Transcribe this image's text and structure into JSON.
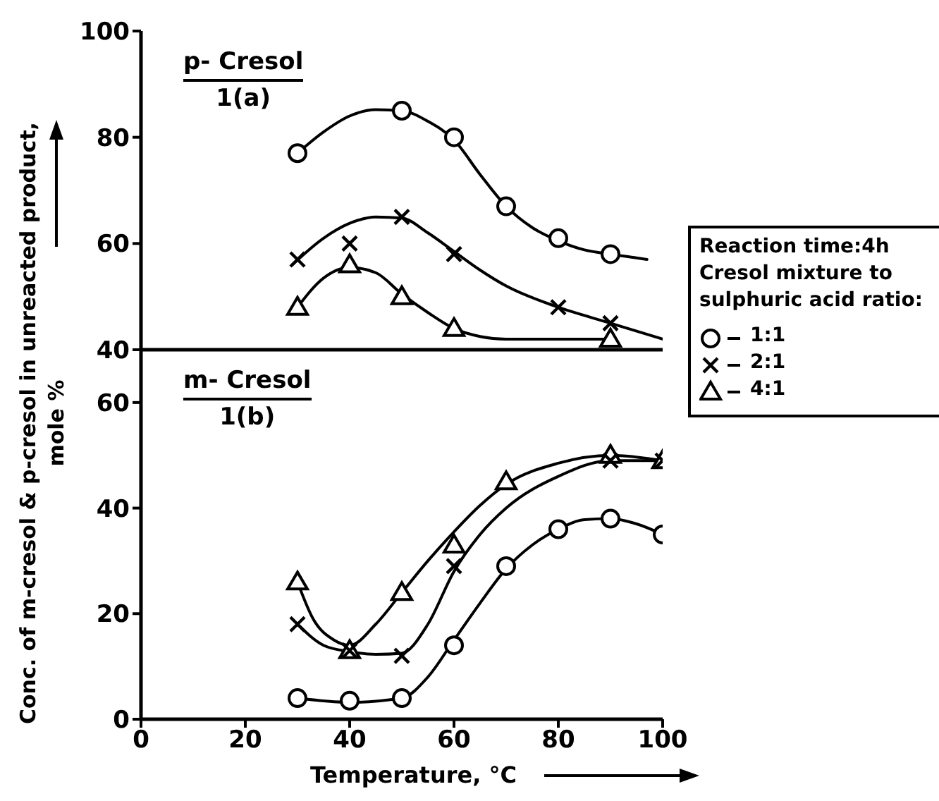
{
  "chart_data": [
    {
      "type": "scatter",
      "title": "p- Cresol",
      "subtitle": "1(a)",
      "xlim": [
        0,
        100
      ],
      "xticks": [
        0,
        20,
        40,
        60,
        80,
        100
      ],
      "ylim": [
        40,
        100
      ],
      "yticks": [
        40,
        60,
        80,
        100
      ],
      "tick_labels": "y",
      "series": [
        {
          "type": "scatter",
          "color": "#000000",
          "marker": "circle",
          "x": [
            30,
            50,
            60,
            70,
            80,
            90
          ],
          "values": [
            77,
            85,
            80,
            67,
            61,
            58
          ]
        },
        {
          "type": "scatter",
          "color": "#000000",
          "marker": "cross",
          "x": [
            30,
            40,
            50,
            60,
            80,
            90
          ],
          "values": [
            57,
            60,
            65,
            58,
            48,
            45
          ]
        },
        {
          "type": "scatter",
          "color": "#000000",
          "marker": "triangle",
          "x": [
            30,
            40,
            50,
            60,
            90
          ],
          "values": [
            48,
            56,
            50,
            44,
            42
          ]
        },
        {
          "type": "line",
          "color": "#000000",
          "marker": "none",
          "x": [
            30,
            35,
            40,
            45,
            50,
            55,
            60,
            65,
            70,
            75,
            80,
            85,
            90,
            95,
            97
          ],
          "values": [
            77,
            81,
            84,
            85.2,
            85,
            83,
            79.5,
            73,
            67,
            63,
            60.5,
            58.8,
            58,
            57.3,
            57
          ]
        },
        {
          "type": "line",
          "color": "#000000",
          "marker": "none",
          "x": [
            29,
            35,
            40,
            45,
            50,
            55,
            60,
            65,
            70,
            80,
            90,
            100
          ],
          "values": [
            56,
            61,
            63.8,
            65,
            64.8,
            62,
            58.5,
            55,
            52,
            48,
            45,
            42
          ]
        },
        {
          "type": "line",
          "color": "#000000",
          "marker": "none",
          "x": [
            30,
            35,
            40,
            45,
            50,
            55,
            60,
            65,
            70,
            80,
            90
          ],
          "values": [
            48,
            53.5,
            55.5,
            54.5,
            50.5,
            47,
            44,
            42.5,
            42,
            42,
            42
          ]
        }
      ]
    },
    {
      "type": "scatter",
      "title": "m- Cresol",
      "subtitle": "1(b)",
      "xlabel": "Temperature, °C",
      "ylabel": "Conc. of m-cresol & p-cresol in unreacted product, mole %",
      "xlim": [
        0,
        100
      ],
      "xticks": [
        0,
        20,
        40,
        60,
        80,
        100
      ],
      "ylim": [
        0,
        70
      ],
      "yticks": [
        0,
        20,
        40,
        60
      ],
      "legend": "right",
      "legend_title": "Reaction time:4h Cresol mixture to sulphuric acid ratio:",
      "series": [
        {
          "type": "scatter",
          "name": "1:1",
          "color": "#000000",
          "marker": "circle",
          "x": [
            30,
            40,
            50,
            60,
            70,
            80,
            90,
            100
          ],
          "values": [
            4,
            3.5,
            4,
            14,
            29,
            36,
            38,
            35
          ]
        },
        {
          "type": "scatter",
          "name": "2:1",
          "color": "#000000",
          "marker": "cross",
          "x": [
            30,
            40,
            50,
            60,
            90,
            100
          ],
          "values": [
            18,
            13,
            12,
            29,
            49,
            49
          ]
        },
        {
          "type": "scatter",
          "name": "4:1",
          "color": "#000000",
          "marker": "triangle",
          "x": [
            30,
            40,
            50,
            60,
            70,
            90,
            100
          ],
          "values": [
            26,
            13,
            24,
            33,
            45,
            50,
            49
          ]
        },
        {
          "type": "line",
          "color": "#000000",
          "marker": "none",
          "x": [
            30,
            40,
            50,
            55,
            60,
            65,
            70,
            75,
            80,
            85,
            90,
            95,
            100
          ],
          "values": [
            4,
            3.2,
            4,
            8,
            15,
            22,
            28.5,
            33,
            36,
            37.8,
            38,
            37,
            35
          ]
        },
        {
          "type": "line",
          "color": "#000000",
          "marker": "none",
          "x": [
            30,
            35,
            40,
            45,
            50,
            55,
            60,
            65,
            70,
            80,
            90,
            100
          ],
          "values": [
            18,
            14,
            12.8,
            12.3,
            12.5,
            18,
            28,
            35,
            40,
            46,
            49,
            49
          ]
        },
        {
          "type": "line",
          "color": "#000000",
          "marker": "none",
          "x": [
            30,
            33,
            37,
            40,
            45,
            50,
            55,
            60,
            65,
            70,
            80,
            90,
            100
          ],
          "values": [
            26,
            19,
            15,
            14,
            18,
            24,
            30,
            35.5,
            40.5,
            44.5,
            48.5,
            50,
            49
          ]
        }
      ]
    }
  ]
}
